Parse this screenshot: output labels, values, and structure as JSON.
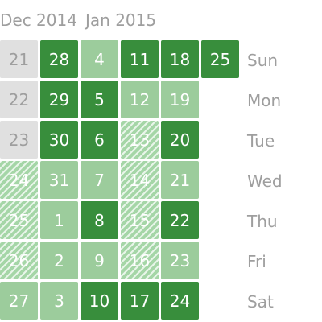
{
  "months": [
    "Dec 2014",
    "Jan 2015"
  ],
  "weekdays": [
    "Sun",
    "Mon",
    "Tue",
    "Wed",
    "Thu",
    "Fri",
    "Sat"
  ],
  "legend_colors": {
    "dark": "#388e3c",
    "light": "#9ccc9c",
    "hatched": "#a5d6a7",
    "empty": "#e0e0e0"
  },
  "weeks": [
    [
      {
        "day": "21",
        "level": "empty"
      },
      {
        "day": "22",
        "level": "empty"
      },
      {
        "day": "23",
        "level": "empty"
      },
      {
        "day": "24",
        "level": "hatch"
      },
      {
        "day": "25",
        "level": "hatch"
      },
      {
        "day": "26",
        "level": "hatch"
      },
      {
        "day": "27",
        "level": "light"
      }
    ],
    [
      {
        "day": "28",
        "level": "dark"
      },
      {
        "day": "29",
        "level": "dark"
      },
      {
        "day": "30",
        "level": "dark"
      },
      {
        "day": "31",
        "level": "light"
      },
      {
        "day": "1",
        "level": "light"
      },
      {
        "day": "2",
        "level": "light"
      },
      {
        "day": "3",
        "level": "light"
      }
    ],
    [
      {
        "day": "4",
        "level": "light"
      },
      {
        "day": "5",
        "level": "dark"
      },
      {
        "day": "6",
        "level": "dark"
      },
      {
        "day": "7",
        "level": "light"
      },
      {
        "day": "8",
        "level": "dark"
      },
      {
        "day": "9",
        "level": "light"
      },
      {
        "day": "10",
        "level": "dark"
      }
    ],
    [
      {
        "day": "11",
        "level": "dark"
      },
      {
        "day": "12",
        "level": "light"
      },
      {
        "day": "13",
        "level": "hatch"
      },
      {
        "day": "14",
        "level": "hatch"
      },
      {
        "day": "15",
        "level": "hatch"
      },
      {
        "day": "16",
        "level": "hatch"
      },
      {
        "day": "17",
        "level": "dark"
      }
    ],
    [
      {
        "day": "18",
        "level": "dark"
      },
      {
        "day": "19",
        "level": "light"
      },
      {
        "day": "20",
        "level": "dark"
      },
      {
        "day": "21",
        "level": "light"
      },
      {
        "day": "22",
        "level": "dark"
      },
      {
        "day": "23",
        "level": "light"
      },
      {
        "day": "24",
        "level": "dark"
      }
    ],
    [
      {
        "day": "25",
        "level": "dark"
      }
    ]
  ]
}
